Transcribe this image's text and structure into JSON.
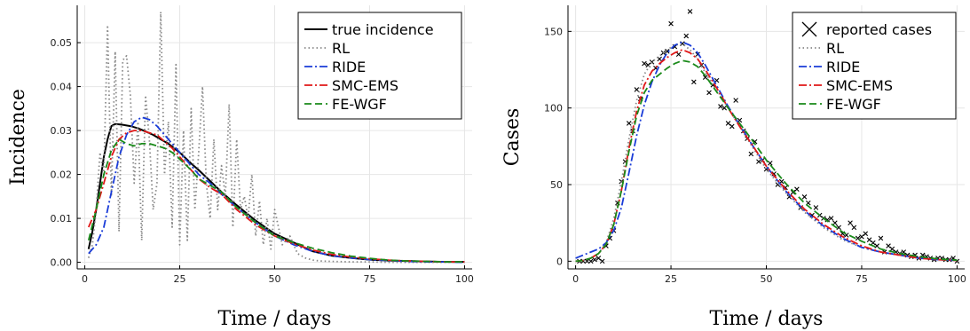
{
  "chart_data": [
    {
      "type": "line",
      "title": "",
      "xlabel": "Time / days",
      "ylabel": "Incidence",
      "xlim": [
        -2,
        102
      ],
      "ylim": [
        -0.0015,
        0.0585
      ],
      "xticks": [
        0,
        25,
        50,
        75,
        100
      ],
      "xtick_labels": [
        "0",
        "25",
        "50",
        "75",
        "100"
      ],
      "yticks": [
        0,
        0.01,
        0.02,
        0.03,
        0.04,
        0.05
      ],
      "ytick_labels": [
        "0.00",
        "0.01",
        "0.02",
        "0.03",
        "0.04",
        "0.05"
      ],
      "grid": true,
      "legend_position": "top-right",
      "series": [
        {
          "name": "true incidence",
          "color": "#000000",
          "dash": "solid",
          "x": [
            1,
            2,
            3,
            4,
            5,
            6,
            7,
            8,
            9,
            10,
            12,
            14,
            16,
            18,
            20,
            22,
            25,
            28,
            30,
            33,
            36,
            40,
            45,
            50,
            55,
            60,
            65,
            70,
            75,
            80,
            85,
            90,
            95,
            100
          ],
          "y": [
            0.003,
            0.007,
            0.012,
            0.018,
            0.024,
            0.028,
            0.031,
            0.0315,
            0.0314,
            0.0313,
            0.031,
            0.0305,
            0.0298,
            0.029,
            0.028,
            0.027,
            0.025,
            0.0225,
            0.021,
            0.0185,
            0.016,
            0.013,
            0.0095,
            0.0065,
            0.0045,
            0.0025,
            0.0015,
            0.001,
            0.0006,
            0.0004,
            0.0003,
            0.0002,
            0.0001,
            0.0001
          ]
        },
        {
          "name": "RL",
          "color": "#888888",
          "dash": "dot",
          "x": [
            1,
            2,
            3,
            4,
            5,
            6,
            7,
            8,
            9,
            10,
            11,
            12,
            13,
            14,
            15,
            16,
            17,
            18,
            19,
            20,
            21,
            22,
            23,
            24,
            25,
            26,
            27,
            28,
            29,
            30,
            31,
            32,
            33,
            34,
            35,
            36,
            37,
            38,
            39,
            40,
            41,
            42,
            43,
            44,
            45,
            46,
            47,
            48,
            49,
            50,
            52,
            54,
            56,
            58,
            60,
            62,
            65,
            70,
            75,
            80,
            85,
            90,
            95,
            100
          ],
          "y": [
            0.001,
            0.004,
            0.012,
            0.025,
            0.02,
            0.054,
            0.015,
            0.048,
            0.007,
            0.046,
            0.047,
            0.038,
            0.018,
            0.032,
            0.005,
            0.038,
            0.028,
            0.012,
            0.018,
            0.057,
            0.02,
            0.032,
            0.008,
            0.045,
            0.004,
            0.03,
            0.005,
            0.035,
            0.012,
            0.025,
            0.04,
            0.018,
            0.01,
            0.028,
            0.012,
            0.022,
            0.015,
            0.036,
            0.008,
            0.028,
            0.012,
            0.015,
            0.01,
            0.02,
            0.006,
            0.014,
            0.004,
            0.01,
            0.003,
            0.012,
            0.004,
            0.006,
            0.002,
            0.001,
            0.0005,
            0.0003,
            0.0002,
            0.0001,
            0.0001,
            0.0,
            0.0,
            0.0,
            0.0,
            0.0
          ]
        },
        {
          "name": "RIDE",
          "color": "#1a3cd8",
          "dash": "dashdot",
          "x": [
            1,
            3,
            5,
            7,
            9,
            11,
            13,
            15,
            17,
            19,
            21,
            23,
            25,
            28,
            30,
            33,
            36,
            40,
            45,
            50,
            55,
            60,
            65,
            70,
            75,
            80,
            85,
            90,
            95,
            100
          ],
          "y": [
            0.002,
            0.004,
            0.008,
            0.016,
            0.024,
            0.029,
            0.032,
            0.033,
            0.0325,
            0.031,
            0.029,
            0.027,
            0.025,
            0.022,
            0.02,
            0.018,
            0.0155,
            0.0125,
            0.009,
            0.006,
            0.004,
            0.0025,
            0.0015,
            0.001,
            0.0006,
            0.0004,
            0.0002,
            0.0001,
            0.0001,
            0.0
          ]
        },
        {
          "name": "SMC-EMS",
          "color": "#e01818",
          "dash": "dashdot",
          "x": [
            1,
            3,
            5,
            7,
            9,
            11,
            13,
            15,
            17,
            19,
            21,
            23,
            25,
            28,
            30,
            33,
            36,
            40,
            45,
            50,
            55,
            60,
            65,
            70,
            75,
            80,
            85,
            90,
            95,
            100
          ],
          "y": [
            0.008,
            0.012,
            0.018,
            0.024,
            0.028,
            0.0295,
            0.03,
            0.03,
            0.0295,
            0.029,
            0.0275,
            0.026,
            0.024,
            0.021,
            0.019,
            0.017,
            0.0155,
            0.012,
            0.0085,
            0.006,
            0.0042,
            0.0028,
            0.0018,
            0.0012,
            0.0008,
            0.0005,
            0.0003,
            0.0002,
            0.0001,
            0.0001
          ]
        },
        {
          "name": "FE-WGF",
          "color": "#1a8a1a",
          "dash": "dash",
          "x": [
            1,
            3,
            5,
            7,
            9,
            11,
            13,
            15,
            17,
            19,
            21,
            23,
            25,
            28,
            30,
            33,
            36,
            40,
            45,
            50,
            55,
            60,
            65,
            70,
            75,
            80,
            85,
            90,
            95,
            100
          ],
          "y": [
            0.005,
            0.012,
            0.02,
            0.0255,
            0.028,
            0.027,
            0.0265,
            0.027,
            0.027,
            0.0265,
            0.026,
            0.025,
            0.0235,
            0.021,
            0.019,
            0.0175,
            0.016,
            0.0125,
            0.009,
            0.006,
            0.0045,
            0.0032,
            0.0022,
            0.0014,
            0.0009,
            0.0005,
            0.0003,
            0.0002,
            0.0001,
            0.0001
          ]
        }
      ]
    },
    {
      "type": "line",
      "title": "",
      "xlabel": "Time / days",
      "ylabel": "Cases",
      "xlim": [
        -2,
        102
      ],
      "ylim": [
        -5,
        167
      ],
      "xticks": [
        0,
        25,
        50,
        75,
        100
      ],
      "xtick_labels": [
        "0",
        "25",
        "50",
        "75",
        "100"
      ],
      "yticks": [
        0,
        50,
        100,
        150
      ],
      "ytick_labels": [
        "0",
        "50",
        "100",
        "150"
      ],
      "grid": true,
      "legend_position": "top-right",
      "scatter": {
        "name": "reported cases",
        "color": "#000000",
        "marker": "x",
        "x": [
          1,
          2,
          3,
          4,
          5,
          6,
          7,
          8,
          9,
          10,
          11,
          12,
          13,
          14,
          15,
          16,
          17,
          18,
          19,
          20,
          21,
          22,
          23,
          24,
          25,
          26,
          27,
          28,
          29,
          30,
          31,
          32,
          33,
          34,
          35,
          36,
          37,
          38,
          39,
          40,
          41,
          42,
          43,
          44,
          45,
          46,
          47,
          48,
          49,
          50,
          51,
          52,
          53,
          54,
          55,
          56,
          57,
          58,
          59,
          60,
          61,
          62,
          63,
          64,
          65,
          66,
          67,
          68,
          69,
          70,
          71,
          72,
          73,
          74,
          75,
          76,
          77,
          78,
          79,
          80,
          81,
          82,
          83,
          84,
          85,
          86,
          87,
          88,
          89,
          90,
          91,
          92,
          93,
          94,
          95,
          96,
          97,
          98,
          99,
          100
        ],
        "y": [
          0,
          0,
          0,
          0,
          1,
          2,
          0,
          10,
          15,
          20,
          38,
          52,
          65,
          90,
          85,
          112,
          106,
          129,
          128,
          130,
          126,
          132,
          136,
          137,
          155,
          140,
          135,
          142,
          147,
          163,
          117,
          135,
          128,
          120,
          110,
          115,
          118,
          101,
          100,
          90,
          88,
          105,
          92,
          85,
          80,
          70,
          78,
          65,
          66,
          60,
          64,
          57,
          50,
          52,
          48,
          42,
          45,
          47,
          35,
          42,
          38,
          30,
          35,
          30,
          28,
          27,
          28,
          25,
          22,
          18,
          17,
          25,
          22,
          15,
          16,
          18,
          14,
          12,
          10,
          15,
          6,
          10,
          8,
          6,
          5,
          6,
          4,
          3,
          4,
          2,
          4,
          3,
          2,
          1,
          2,
          2,
          1,
          1,
          2,
          0
        ]
      },
      "series": [
        {
          "name": "RL",
          "color": "#888888",
          "dash": "dot",
          "x": [
            0,
            2,
            4,
            6,
            8,
            10,
            12,
            14,
            16,
            18,
            20,
            22,
            24,
            26,
            28,
            30,
            32,
            34,
            36,
            38,
            40,
            43,
            46,
            50,
            55,
            60,
            65,
            70,
            75,
            80,
            85,
            90,
            95,
            100
          ],
          "y": [
            0,
            0.5,
            2,
            5,
            12,
            28,
            52,
            80,
            105,
            122,
            130,
            134,
            138,
            141,
            142,
            138,
            132,
            123,
            115,
            108,
            100,
            88,
            76,
            60,
            45,
            32,
            22,
            14,
            9,
            6,
            4,
            2,
            1,
            0.5
          ]
        },
        {
          "name": "RIDE",
          "color": "#1a3cd8",
          "dash": "dashdot",
          "x": [
            0,
            2,
            4,
            6,
            8,
            10,
            12,
            14,
            16,
            18,
            20,
            22,
            24,
            26,
            28,
            30,
            32,
            34,
            36,
            38,
            40,
            43,
            46,
            50,
            55,
            60,
            65,
            70,
            75,
            80,
            85,
            90,
            95,
            100
          ],
          "y": [
            2,
            4,
            6,
            8,
            12,
            20,
            35,
            58,
            82,
            102,
            117,
            128,
            136,
            141,
            143,
            141,
            136,
            128,
            119,
            110,
            101,
            89,
            77,
            62,
            46,
            33,
            23,
            15,
            9,
            6,
            4,
            2,
            1,
            0.5
          ]
        },
        {
          "name": "SMC-EMS",
          "color": "#e01818",
          "dash": "dashdot",
          "x": [
            0,
            2,
            4,
            6,
            8,
            10,
            12,
            14,
            16,
            18,
            20,
            22,
            24,
            26,
            28,
            30,
            32,
            34,
            36,
            38,
            40,
            43,
            46,
            50,
            55,
            60,
            65,
            70,
            75,
            80,
            85,
            90,
            95,
            100
          ],
          "y": [
            0,
            0.5,
            2,
            5,
            11,
            24,
            46,
            74,
            98,
            115,
            124,
            129,
            133,
            136,
            138,
            136,
            132,
            125,
            117,
            109,
            100,
            88,
            77,
            62,
            47,
            34,
            24,
            16,
            10,
            6,
            4,
            2,
            1,
            0.5
          ]
        },
        {
          "name": "FE-WGF",
          "color": "#1a8a1a",
          "dash": "dash",
          "x": [
            0,
            2,
            4,
            6,
            8,
            10,
            12,
            14,
            16,
            18,
            20,
            22,
            24,
            26,
            28,
            30,
            32,
            34,
            36,
            38,
            40,
            43,
            46,
            50,
            55,
            60,
            65,
            70,
            75,
            80,
            85,
            90,
            95,
            100
          ],
          "y": [
            0,
            0.5,
            2,
            5,
            11,
            24,
            46,
            72,
            95,
            110,
            118,
            122,
            126,
            129,
            131,
            130,
            127,
            121,
            114,
            107,
            100,
            90,
            80,
            66,
            51,
            38,
            28,
            19,
            13,
            8,
            5,
            3,
            1.5,
            0.7
          ]
        }
      ]
    }
  ]
}
